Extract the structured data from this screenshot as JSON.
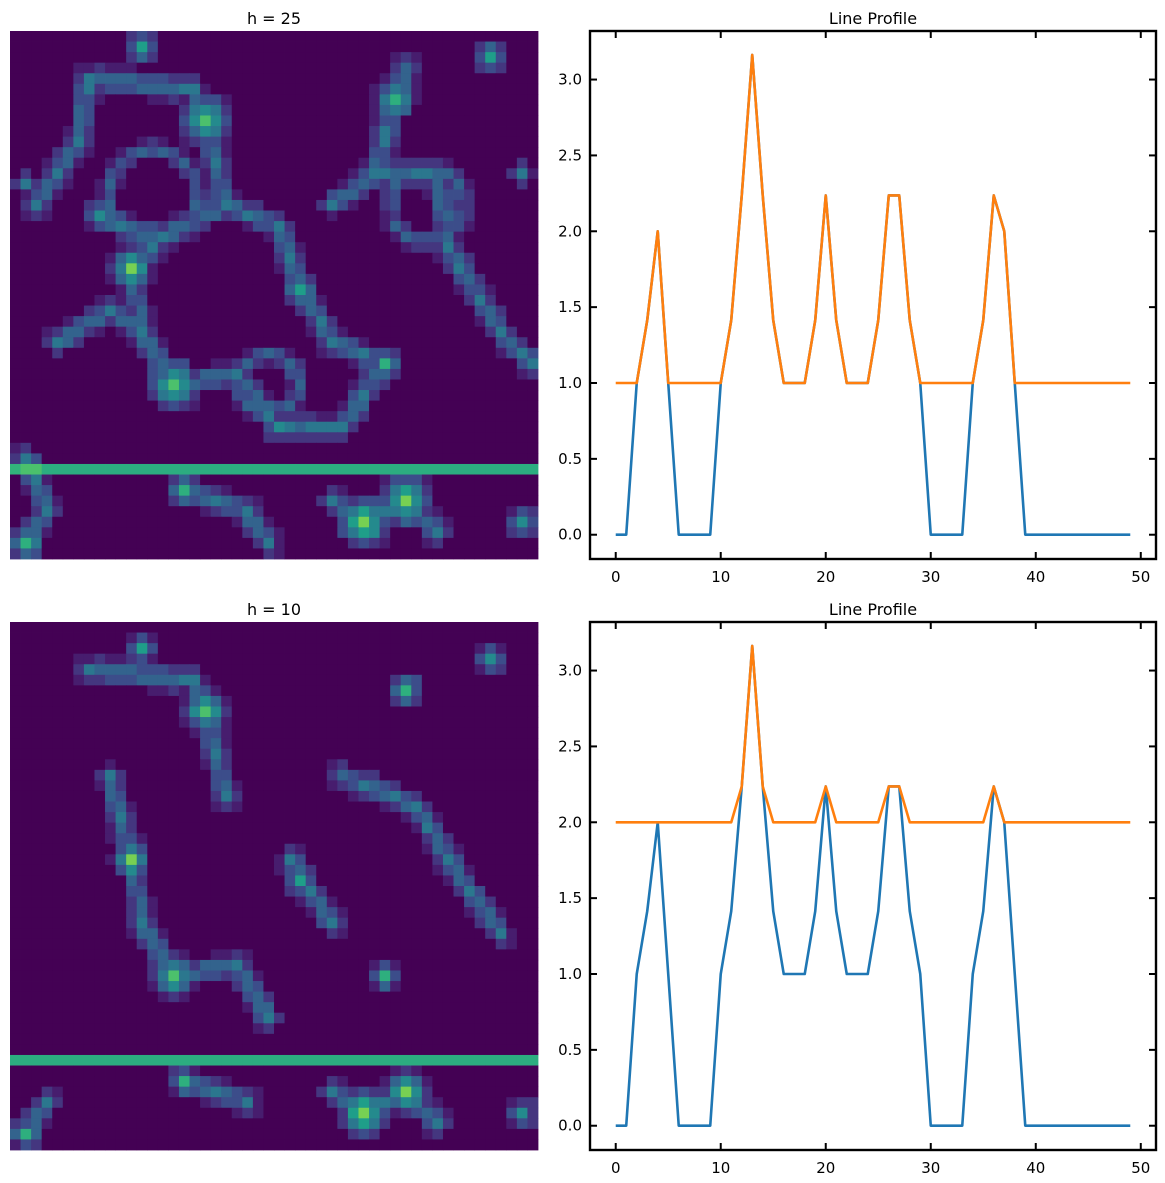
{
  "chart_data": [
    {
      "type": "heatmap",
      "title": "h = 25",
      "grid_rows": 50,
      "grid_cols": 50,
      "colormap": "viridis",
      "value_range": [
        0,
        3.16
      ],
      "highlight_row": 41,
      "peaks": [
        {
          "col": 18,
          "row": 8,
          "amp": 2.2,
          "r": 3
        },
        {
          "col": 11,
          "row": 22,
          "amp": 2.4,
          "r": 2.5
        },
        {
          "col": 15,
          "row": 33,
          "amp": 2.3,
          "r": 3
        },
        {
          "col": 36,
          "row": 6,
          "amp": 2.0,
          "r": 2.5
        },
        {
          "col": 33,
          "row": 46,
          "amp": 2.5,
          "r": 3
        },
        {
          "col": 37,
          "row": 44,
          "amp": 2.4,
          "r": 3
        },
        {
          "col": 27,
          "row": 24,
          "amp": 1.9,
          "r": 2
        },
        {
          "col": 35,
          "row": 31,
          "amp": 1.8,
          "r": 2
        },
        {
          "col": 45,
          "row": 2,
          "amp": 1.7,
          "r": 2
        },
        {
          "col": 1,
          "row": 48,
          "amp": 2.1,
          "r": 2
        },
        {
          "col": 16,
          "row": 43,
          "amp": 1.9,
          "r": 2
        },
        {
          "col": 12,
          "row": 1,
          "amp": 1.7,
          "r": 2
        },
        {
          "col": 8,
          "row": 17,
          "amp": 1.5,
          "r": 2
        },
        {
          "col": 25,
          "row": 37,
          "amp": 1.4,
          "r": 2
        },
        {
          "col": 48,
          "row": 46,
          "amp": 1.5,
          "r": 2
        },
        {
          "col": 48,
          "row": 13,
          "amp": 1.3,
          "r": 1.5
        },
        {
          "col": 1,
          "row": 14,
          "amp": 1.2,
          "r": 1.5
        }
      ],
      "ridges": [
        [
          [
            7,
            4
          ],
          [
            17,
            5
          ],
          [
            18,
            8
          ],
          [
            20,
            16
          ],
          [
            14,
            19
          ],
          [
            11,
            22
          ]
        ],
        [
          [
            11,
            22
          ],
          [
            12,
            28
          ],
          [
            15,
            33
          ]
        ],
        [
          [
            4,
            29
          ],
          [
            9,
            26
          ],
          [
            12,
            28
          ]
        ],
        [
          [
            20,
            16
          ],
          [
            25,
            18
          ],
          [
            27,
            24
          ],
          [
            30,
            29
          ],
          [
            35,
            31
          ]
        ],
        [
          [
            15,
            33
          ],
          [
            21,
            32
          ],
          [
            25,
            37
          ],
          [
            31,
            37
          ],
          [
            35,
            31
          ]
        ],
        [
          [
            30,
            16
          ],
          [
            34,
            13
          ],
          [
            40,
            13
          ],
          [
            41,
            20
          ],
          [
            46,
            28
          ],
          [
            49,
            31
          ]
        ],
        [
          [
            34,
            13
          ],
          [
            36,
            6
          ],
          [
            37,
            3
          ]
        ],
        [
          [
            7,
            4
          ],
          [
            6,
            10
          ],
          [
            2,
            16
          ]
        ],
        [
          [
            14,
            19
          ],
          [
            10,
            18
          ],
          [
            8,
            17
          ]
        ],
        [
          [
            16,
            43
          ],
          [
            22,
            45
          ],
          [
            24,
            48
          ]
        ],
        [
          [
            30,
            44
          ],
          [
            33,
            46
          ],
          [
            37,
            44
          ],
          [
            40,
            47
          ]
        ],
        [
          [
            1,
            48
          ],
          [
            3,
            45
          ],
          [
            1,
            40
          ]
        ]
      ],
      "rings": [
        {
          "col": 24,
          "row": 33,
          "r": 2.8
        },
        {
          "col": 39,
          "row": 16,
          "r": 3.5
        },
        {
          "col": 13,
          "row": 15,
          "r": 4.2
        }
      ]
    },
    {
      "type": "line",
      "title": "Line Profile",
      "x": [
        0,
        1,
        2,
        3,
        4,
        5,
        6,
        7,
        8,
        9,
        10,
        11,
        12,
        13,
        14,
        15,
        16,
        17,
        18,
        19,
        20,
        21,
        22,
        23,
        24,
        25,
        26,
        27,
        28,
        29,
        30,
        31,
        32,
        33,
        34,
        35,
        36,
        37,
        38,
        39,
        40,
        41,
        42,
        43,
        44,
        45,
        46,
        47,
        48,
        49
      ],
      "series": [
        {
          "name": "blue",
          "color": "#1f77b4",
          "values": [
            0,
            0,
            1,
            1.414,
            2,
            1,
            0,
            0,
            0,
            0,
            1,
            1.414,
            2.236,
            3.162,
            2.236,
            1.414,
            1,
            1,
            1,
            1.414,
            2.236,
            1.414,
            1,
            1,
            1,
            1.414,
            2.236,
            2.236,
            1.414,
            1,
            0,
            0,
            0,
            0,
            1,
            1.414,
            2.236,
            2,
            1,
            0,
            0,
            0,
            0,
            0,
            0,
            0,
            0,
            0,
            0,
            0
          ]
        },
        {
          "name": "orange",
          "color": "#ff7f0e",
          "values": [
            1,
            1,
            1,
            1.414,
            2,
            1,
            1,
            1,
            1,
            1,
            1,
            1.414,
            2.236,
            3.162,
            2.236,
            1.414,
            1,
            1,
            1,
            1.414,
            2.236,
            1.414,
            1,
            1,
            1,
            1.414,
            2.236,
            2.236,
            1.414,
            1,
            1,
            1,
            1,
            1,
            1,
            1.414,
            2.236,
            2,
            1,
            1,
            1,
            1,
            1,
            1,
            1,
            1,
            1,
            1,
            1,
            1
          ]
        }
      ],
      "xlim": [
        -2.45,
        51.45
      ],
      "ylim": [
        -0.16,
        3.32
      ],
      "xticks": [
        0,
        10,
        20,
        30,
        40,
        50
      ],
      "yticks": [
        0.0,
        0.5,
        1.0,
        1.5,
        2.0,
        2.5,
        3.0
      ],
      "xlabel": "",
      "ylabel": ""
    },
    {
      "type": "heatmap",
      "title": "h = 10",
      "grid_rows": 50,
      "grid_cols": 50,
      "colormap": "viridis",
      "value_range": [
        0,
        3.16
      ],
      "highlight_row": 41,
      "peaks": [
        {
          "col": 18,
          "row": 8,
          "amp": 2.2,
          "r": 2.5
        },
        {
          "col": 11,
          "row": 22,
          "amp": 2.4,
          "r": 2.2
        },
        {
          "col": 15,
          "row": 33,
          "amp": 2.3,
          "r": 2.5
        },
        {
          "col": 37,
          "row": 6,
          "amp": 1.8,
          "r": 2
        },
        {
          "col": 33,
          "row": 46,
          "amp": 2.5,
          "r": 2.8
        },
        {
          "col": 37,
          "row": 44,
          "amp": 2.4,
          "r": 2.5
        },
        {
          "col": 27,
          "row": 24,
          "amp": 1.8,
          "r": 1.8
        },
        {
          "col": 35,
          "row": 33,
          "amp": 1.8,
          "r": 1.8
        },
        {
          "col": 45,
          "row": 3,
          "amp": 1.6,
          "r": 1.8
        },
        {
          "col": 1,
          "row": 48,
          "amp": 2.1,
          "r": 1.8
        },
        {
          "col": 16,
          "row": 43,
          "amp": 1.9,
          "r": 1.8
        },
        {
          "col": 12,
          "row": 2,
          "amp": 1.6,
          "r": 1.8
        },
        {
          "col": 48,
          "row": 46,
          "amp": 1.5,
          "r": 1.8
        },
        {
          "col": 46,
          "row": 29,
          "amp": 1.2,
          "r": 1.2
        }
      ],
      "ridges": [
        [
          [
            7,
            4
          ],
          [
            17,
            5
          ],
          [
            18,
            8
          ],
          [
            20,
            16
          ]
        ],
        [
          [
            11,
            22
          ],
          [
            10,
            18
          ],
          [
            9,
            14
          ]
        ],
        [
          [
            11,
            22
          ],
          [
            12,
            28
          ],
          [
            15,
            33
          ]
        ],
        [
          [
            26,
            22
          ],
          [
            30,
            28
          ]
        ],
        [
          [
            15,
            33
          ],
          [
            21,
            32
          ],
          [
            24,
            37
          ]
        ],
        [
          [
            31,
            14
          ],
          [
            38,
            17
          ],
          [
            41,
            22
          ],
          [
            46,
            29
          ]
        ],
        [
          [
            16,
            43
          ],
          [
            22,
            45
          ]
        ],
        [
          [
            30,
            44
          ],
          [
            33,
            46
          ],
          [
            37,
            44
          ],
          [
            40,
            47
          ]
        ],
        [
          [
            1,
            48
          ],
          [
            3,
            45
          ]
        ]
      ],
      "rings": []
    },
    {
      "type": "line",
      "title": "Line Profile",
      "x": [
        0,
        1,
        2,
        3,
        4,
        5,
        6,
        7,
        8,
        9,
        10,
        11,
        12,
        13,
        14,
        15,
        16,
        17,
        18,
        19,
        20,
        21,
        22,
        23,
        24,
        25,
        26,
        27,
        28,
        29,
        30,
        31,
        32,
        33,
        34,
        35,
        36,
        37,
        38,
        39,
        40,
        41,
        42,
        43,
        44,
        45,
        46,
        47,
        48,
        49
      ],
      "series": [
        {
          "name": "blue",
          "color": "#1f77b4",
          "values": [
            0,
            0,
            1,
            1.414,
            2,
            1,
            0,
            0,
            0,
            0,
            1,
            1.414,
            2.236,
            3.162,
            2.236,
            1.414,
            1,
            1,
            1,
            1.414,
            2.236,
            1.414,
            1,
            1,
            1,
            1.414,
            2.236,
            2.236,
            1.414,
            1,
            0,
            0,
            0,
            0,
            1,
            1.414,
            2.236,
            2,
            1,
            0,
            0,
            0,
            0,
            0,
            0,
            0,
            0,
            0,
            0,
            0
          ]
        },
        {
          "name": "orange",
          "color": "#ff7f0e",
          "values": [
            2,
            2,
            2,
            2,
            2,
            2,
            2,
            2,
            2,
            2,
            2,
            2,
            2.236,
            3.162,
            2.236,
            2,
            2,
            2,
            2,
            2,
            2.236,
            2,
            2,
            2,
            2,
            2,
            2.236,
            2.236,
            2,
            2,
            2,
            2,
            2,
            2,
            2,
            2,
            2.236,
            2,
            2,
            2,
            2,
            2,
            2,
            2,
            2,
            2,
            2,
            2,
            2,
            2
          ]
        }
      ],
      "xlim": [
        -2.45,
        51.45
      ],
      "ylim": [
        -0.16,
        3.32
      ],
      "xticks": [
        0,
        10,
        20,
        30,
        40,
        50
      ],
      "yticks": [
        0.0,
        0.5,
        1.0,
        1.5,
        2.0,
        2.5,
        3.0
      ],
      "xlabel": "",
      "ylabel": ""
    }
  ]
}
